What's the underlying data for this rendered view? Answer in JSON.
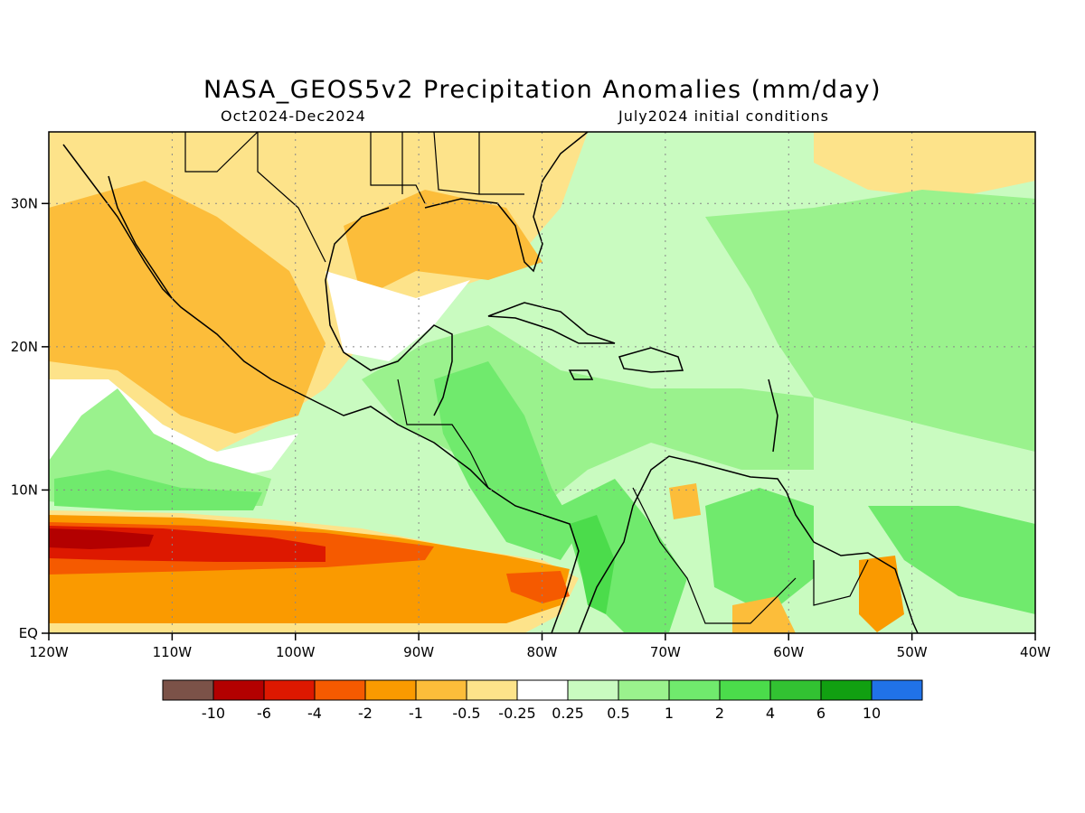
{
  "title": "NASA_GEOS5v2 Precipitation Anomalies (mm/day)",
  "subtitle_left": "Oct2024-Dec2024",
  "subtitle_right": "July2024 initial conditions",
  "map": {
    "lon_range": [
      -120,
      -40
    ],
    "lat_range": [
      0,
      35
    ],
    "grid": "dotted",
    "x_ticks": [
      {
        "value": -120,
        "label": "120W"
      },
      {
        "value": -110,
        "label": "110W"
      },
      {
        "value": -100,
        "label": "100W"
      },
      {
        "value": -90,
        "label": "90W"
      },
      {
        "value": -80,
        "label": "80W"
      },
      {
        "value": -70,
        "label": "70W"
      },
      {
        "value": -60,
        "label": "60W"
      },
      {
        "value": -50,
        "label": "50W"
      },
      {
        "value": -40,
        "label": "40W"
      }
    ],
    "y_ticks": [
      {
        "value": 0,
        "label": "EQ"
      },
      {
        "value": 10,
        "label": "10N"
      },
      {
        "value": 20,
        "label": "20N"
      },
      {
        "value": 30,
        "label": "30N"
      }
    ]
  },
  "colorbar": {
    "colors": [
      "#7b5248",
      "#b30000",
      "#dd1800",
      "#f55a00",
      "#fa9a00",
      "#fcbd3a",
      "#fde38a",
      "#ffffff",
      "#c9fbc0",
      "#9af28d",
      "#70ea6d",
      "#4bdc4b",
      "#32c232",
      "#11a011",
      "#2072e8"
    ],
    "labels": [
      "-10",
      "-6",
      "-4",
      "-2",
      "-1",
      "-0.5",
      "-0.25",
      "0.25",
      "0.5",
      "1",
      "2",
      "4",
      "6",
      "10"
    ]
  }
}
